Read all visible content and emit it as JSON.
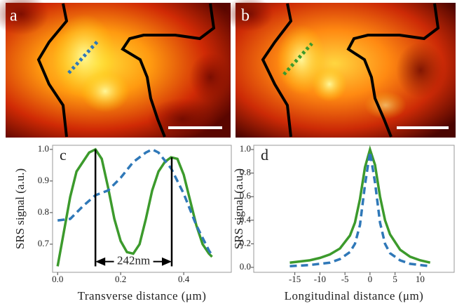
{
  "panels": [
    {
      "label": "a"
    },
    {
      "label": "b"
    }
  ],
  "chart_data": [
    {
      "type": "line",
      "label": "c",
      "xlabel": "Transverse distance (μm)",
      "ylabel": "SRS signal (a.u.)",
      "xlim": [
        -0.016,
        0.551
      ],
      "ylim": [
        0.611,
        1.013
      ],
      "xticks": [
        {
          "value": 0,
          "label": "0.0"
        },
        0.2,
        0.4
      ],
      "yticks": [
        0.7,
        0.8,
        0.9,
        {
          "value": 1,
          "label": "1.0"
        }
      ],
      "series": [
        {
          "color": "#3c9a2c",
          "dash": false,
          "x": [
            0,
            0.02,
            0.04,
            0.06,
            0.08,
            0.1,
            0.12,
            0.14,
            0.16,
            0.18,
            0.2,
            0.22,
            0.24,
            0.26,
            0.28,
            0.3,
            0.32,
            0.34,
            0.36,
            0.38,
            0.4,
            0.42,
            0.44,
            0.46,
            0.48,
            0.49
          ],
          "values": [
            0.63,
            0.74,
            0.85,
            0.93,
            0.96,
            0.99,
            1.0,
            0.97,
            0.88,
            0.78,
            0.71,
            0.675,
            0.67,
            0.7,
            0.78,
            0.87,
            0.93,
            0.96,
            0.975,
            0.97,
            0.92,
            0.84,
            0.76,
            0.7,
            0.67,
            0.66
          ]
        },
        {
          "color": "#2f78b8",
          "dash": true,
          "x": [
            0,
            0.04,
            0.08,
            0.12,
            0.16,
            0.2,
            0.24,
            0.28,
            0.3,
            0.32,
            0.36,
            0.4,
            0.44,
            0.48,
            0.49
          ],
          "values": [
            0.775,
            0.78,
            0.82,
            0.855,
            0.87,
            0.91,
            0.96,
            0.99,
            1.0,
            0.99,
            0.94,
            0.86,
            0.76,
            0.68,
            0.665
          ]
        }
      ],
      "annotation": {
        "text": "242nm",
        "y": 0.645,
        "lines": [
          {
            "x": 0.12,
            "y": [
              0.63,
              1.0
            ]
          },
          {
            "x": 0.362,
            "y": [
              0.63,
              0.975
            ]
          }
        ]
      }
    },
    {
      "type": "line",
      "label": "d",
      "xlabel": "Longitudinal distance (μm)",
      "ylabel": "SRS signal (a.u.)",
      "xlim": [
        -23.2,
        16.8
      ],
      "ylim": [
        -0.042,
        1.036
      ],
      "xticks": [
        -15,
        -10,
        -5,
        0,
        5,
        10
      ],
      "yticks": [
        {
          "value": 0,
          "label": "0.0"
        },
        0.2,
        0.4,
        0.6,
        0.8,
        {
          "value": 1,
          "label": "1.0"
        }
      ],
      "series": [
        {
          "color": "#3c9a2c",
          "dash": false,
          "x": [
            -16,
            -12,
            -10,
            -8,
            -6,
            -4,
            -3,
            -2,
            -1,
            0,
            1,
            2,
            3,
            4,
            6,
            8,
            10,
            12
          ],
          "values": [
            0.04,
            0.06,
            0.08,
            0.11,
            0.16,
            0.27,
            0.38,
            0.58,
            0.85,
            1.0,
            0.87,
            0.6,
            0.4,
            0.28,
            0.15,
            0.09,
            0.06,
            0.04
          ]
        },
        {
          "color": "#2f78b8",
          "dash": true,
          "x": [
            -16,
            -12,
            -10,
            -8,
            -6,
            -4,
            -3,
            -2,
            -1,
            0,
            1,
            2,
            3,
            4,
            6,
            8,
            10,
            12
          ],
          "values": [
            0.01,
            0.02,
            0.03,
            0.04,
            0.07,
            0.13,
            0.2,
            0.36,
            0.7,
            0.98,
            0.72,
            0.38,
            0.2,
            0.12,
            0.06,
            0.03,
            0.02,
            0.01
          ]
        }
      ]
    }
  ]
}
